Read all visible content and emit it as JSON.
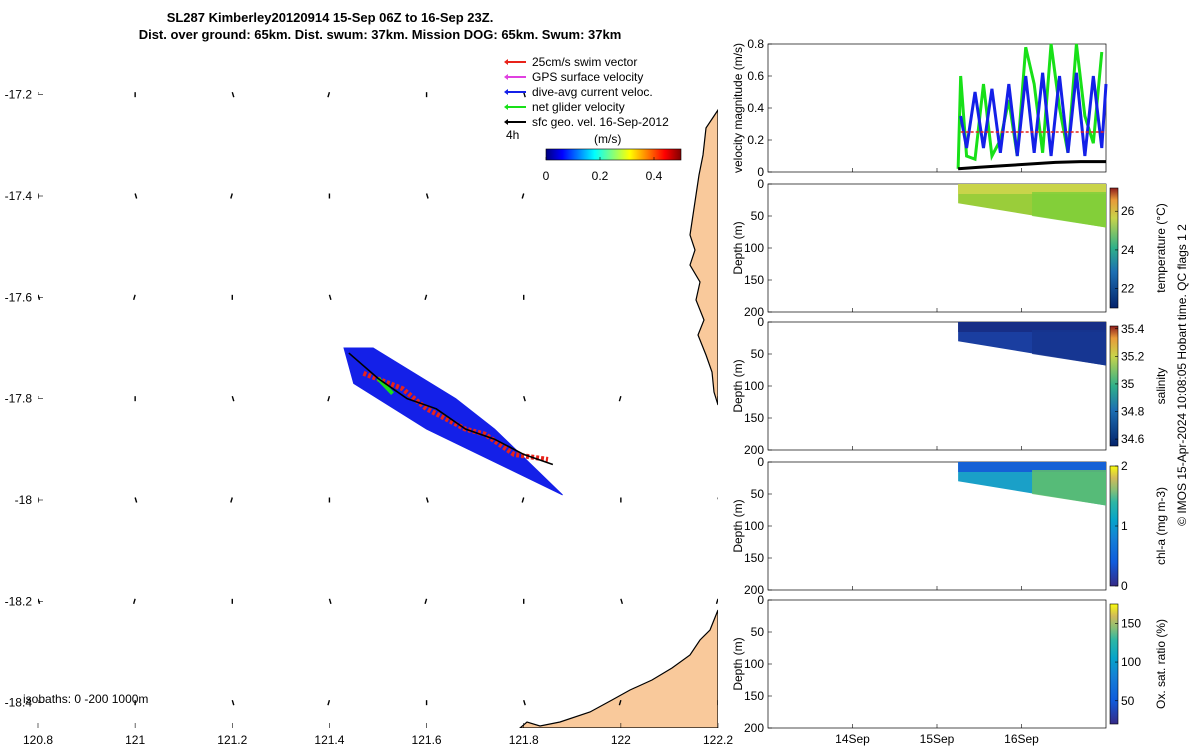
{
  "colors": {
    "land": "#f9c99b",
    "swim": "#e8231a",
    "gps": "#e040e0",
    "current": "#1420e8",
    "net": "#18e018",
    "sfc": "#000000"
  },
  "chart_data": [
    {
      "type": "map",
      "title": "SL287 Kimberley20120914 15-Sep 06Z to 16-Sep 23Z.",
      "subtitle": "Dist. over ground: 65km. Dist. swum: 37km. Mission DOG: 65km. Swum: 37km",
      "xlim": [
        120.8,
        122.2
      ],
      "ylim": [
        -18.45,
        -17.1
      ],
      "x_ticks": [
        "120.8",
        "121",
        "121.2",
        "121.4",
        "121.6",
        "121.8",
        "122",
        "122.2"
      ],
      "y_ticks": [
        "-17.2",
        "-17.4",
        "-17.6",
        "-17.8",
        "-18",
        "-18.2",
        "-18.4"
      ],
      "legend": [
        {
          "label": "25cm/s swim vector",
          "color": "swim"
        },
        {
          "label": "GPS surface velocity",
          "color": "gps"
        },
        {
          "label": "dive-avg current veloc.",
          "color": "current"
        },
        {
          "label": "net glider velocity",
          "color": "net"
        },
        {
          "label": "sfc geo. vel. 16-Sep-2012",
          "color": "sfc"
        }
      ],
      "legend_position": "top-right",
      "legend_note": "4h",
      "colorbar": {
        "label": "(m/s)",
        "ticks": [
          "0",
          "0.2",
          "0.4"
        ],
        "range": [
          0,
          0.5
        ]
      },
      "isobaths_label": "isobaths: 0   -200  1000m",
      "track": [
        [
          121.44,
          -17.71
        ],
        [
          121.5,
          -17.76
        ],
        [
          121.56,
          -17.8
        ],
        [
          121.62,
          -17.82
        ],
        [
          121.68,
          -17.86
        ],
        [
          121.74,
          -17.88
        ],
        [
          121.8,
          -17.91
        ],
        [
          121.86,
          -17.93
        ]
      ]
    },
    {
      "type": "line",
      "ylabel": "velocity magnitude (m/s)",
      "ylim": [
        0,
        0.8
      ],
      "y_ticks": [
        "0",
        "0.2",
        "0.4",
        "0.6",
        "0.8"
      ],
      "x_ticks": [
        "14Sep",
        "15Sep",
        "16Sep"
      ],
      "x_domain": [
        13.0,
        17.0
      ],
      "series": [
        {
          "name": "net glider velocity",
          "color": "net",
          "t": [
            15.25,
            15.28,
            15.35,
            15.45,
            15.55,
            15.65,
            15.75,
            15.85,
            15.95,
            16.05,
            16.15,
            16.25,
            16.35,
            16.45,
            16.55,
            16.65,
            16.75,
            16.85,
            16.95
          ],
          "v": [
            0.02,
            0.6,
            0.1,
            0.08,
            0.55,
            0.1,
            0.2,
            0.45,
            0.1,
            0.78,
            0.55,
            0.12,
            0.8,
            0.4,
            0.12,
            0.8,
            0.35,
            0.18,
            0.75
          ]
        },
        {
          "name": "dive-avg current veloc.",
          "color": "current",
          "t": [
            15.28,
            15.35,
            15.45,
            15.55,
            15.65,
            15.75,
            15.85,
            15.95,
            16.05,
            16.15,
            16.25,
            16.35,
            16.45,
            16.55,
            16.65,
            16.75,
            16.85,
            16.95,
            17.0
          ],
          "v": [
            0.35,
            0.15,
            0.5,
            0.15,
            0.52,
            0.12,
            0.55,
            0.1,
            0.6,
            0.12,
            0.62,
            0.1,
            0.6,
            0.12,
            0.62,
            0.1,
            0.6,
            0.15,
            0.55
          ]
        },
        {
          "name": "25cm/s swim vector",
          "color": "swim",
          "t": [
            15.28,
            17.0
          ],
          "v": [
            0.25,
            0.25
          ]
        },
        {
          "name": "sfc geo. vel.",
          "color": "sfc",
          "t": [
            15.25,
            15.5,
            15.8,
            16.1,
            16.4,
            16.7,
            17.0
          ],
          "v": [
            0.02,
            0.03,
            0.04,
            0.05,
            0.06,
            0.065,
            0.065
          ]
        }
      ]
    },
    {
      "type": "heatmap",
      "ylabel": "Depth (m)",
      "ylim": [
        0,
        200
      ],
      "y_ticks": [
        "0",
        "50",
        "100",
        "150",
        "200"
      ],
      "colorbar": {
        "label": "temperature (°C)",
        "ticks": [
          "22",
          "24",
          "26"
        ],
        "range": [
          21,
          27.2
        ]
      }
    },
    {
      "type": "heatmap",
      "ylabel": "Depth (m)",
      "ylim": [
        0,
        200
      ],
      "y_ticks": [
        "0",
        "50",
        "100",
        "150",
        "200"
      ],
      "colorbar": {
        "label": "salinity",
        "ticks": [
          "34.6",
          "34.8",
          "35",
          "35.2",
          "35.4"
        ],
        "range": [
          34.55,
          35.42
        ]
      }
    },
    {
      "type": "heatmap",
      "ylabel": "Depth (m)",
      "ylim": [
        0,
        200
      ],
      "y_ticks": [
        "0",
        "50",
        "100",
        "150",
        "200"
      ],
      "colorbar": {
        "label": "chl-a (mg m-3)",
        "ticks": [
          "0",
          "1",
          "2"
        ],
        "range": [
          0,
          2
        ]
      }
    },
    {
      "type": "heatmap",
      "ylabel": "Depth (m)",
      "ylim": [
        0,
        200
      ],
      "y_ticks": [
        "0",
        "50",
        "100",
        "150",
        "200"
      ],
      "colorbar": {
        "label": "Ox. sat. ratio (%)",
        "ticks": [
          "50",
          "100",
          "150"
        ],
        "range": [
          20,
          175
        ]
      }
    }
  ],
  "footer": "© IMOS 15-Apr-2024 10:08:05 Hobart time. QC flags 1  2"
}
